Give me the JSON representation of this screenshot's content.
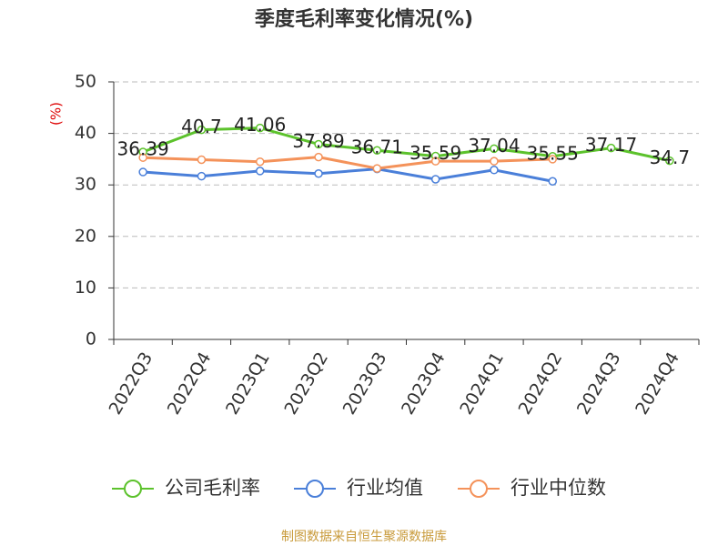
{
  "chart_data": {
    "type": "line",
    "title": "季度毛利率变化情况(%)",
    "y_label": "(%)",
    "categories": [
      "2022Q3",
      "2022Q4",
      "2023Q1",
      "2023Q2",
      "2023Q3",
      "2023Q4",
      "2024Q1",
      "2024Q2",
      "2024Q3",
      "2024Q4"
    ],
    "series": [
      {
        "name": "公司毛利率",
        "color": "#5cc22c",
        "values": [
          36.39,
          40.7,
          41.06,
          37.89,
          36.71,
          35.59,
          37.04,
          35.55,
          37.17,
          34.7
        ],
        "data_labels": true
      },
      {
        "name": "行业均值",
        "color": "#4a7fd9",
        "values": [
          32.5,
          31.7,
          32.7,
          32.2,
          33.1,
          31.1,
          32.9,
          30.7,
          null,
          null
        ]
      },
      {
        "name": "行业中位数",
        "color": "#f4925a",
        "values": [
          35.3,
          34.9,
          34.5,
          35.4,
          33.2,
          34.6,
          34.6,
          35.0,
          null,
          null
        ]
      }
    ],
    "ylim": [
      0,
      50
    ],
    "yticks": [
      0,
      10,
      20,
      30,
      40,
      50
    ],
    "grid": true,
    "legend": "bottom",
    "source": "制图数据来自恒生聚源数据库"
  }
}
